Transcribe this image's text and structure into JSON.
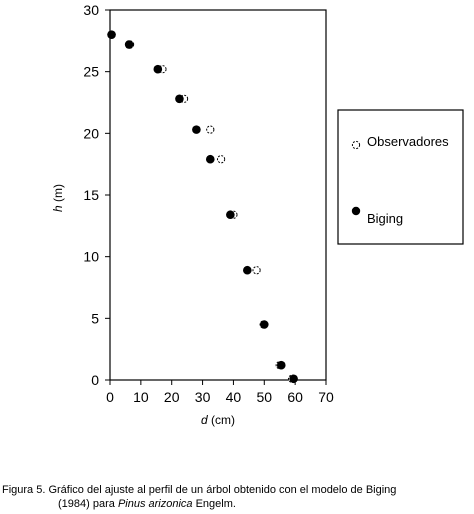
{
  "chart_data": {
    "type": "scatter",
    "xlabel_var": "d",
    "xlabel_unit": " (cm)",
    "ylabel_var": "h",
    "ylabel_unit": " (m)",
    "xlim": [
      0,
      70
    ],
    "ylim": [
      0,
      30
    ],
    "xticks": [
      0,
      10,
      20,
      30,
      40,
      50,
      60,
      70
    ],
    "yticks": [
      0,
      5,
      10,
      15,
      20,
      25,
      30
    ],
    "grid": false,
    "legend_position": "right",
    "series": [
      {
        "name": "Observadores",
        "marker": "open-circle",
        "color": "#000000",
        "points": [
          [
            0.5,
            28.0
          ],
          [
            6.5,
            27.2
          ],
          [
            17.0,
            25.2
          ],
          [
            24.0,
            22.8
          ],
          [
            32.5,
            20.3
          ],
          [
            36.0,
            17.9
          ],
          [
            40.0,
            13.4
          ],
          [
            47.5,
            8.9
          ],
          [
            49.8,
            4.5
          ],
          [
            55.0,
            1.2
          ],
          [
            59.0,
            0.1
          ]
        ]
      },
      {
        "name": "Biging",
        "marker": "filled-circle",
        "color": "#000000",
        "points": [
          [
            0.5,
            28.0
          ],
          [
            6.2,
            27.2
          ],
          [
            15.5,
            25.2
          ],
          [
            22.5,
            22.8
          ],
          [
            28.0,
            20.3
          ],
          [
            32.5,
            17.9
          ],
          [
            39.0,
            13.4
          ],
          [
            44.5,
            8.9
          ],
          [
            50.0,
            4.5
          ],
          [
            55.5,
            1.2
          ],
          [
            59.5,
            0.1
          ]
        ]
      }
    ]
  },
  "caption": {
    "prefix": "Figura 5. Gráfico del ajuste al perfil de un árbol obtenido con el modelo de Biging",
    "line2_start": "(1984) para ",
    "species": "Pinus arizonica",
    "line2_end": " Engelm."
  }
}
